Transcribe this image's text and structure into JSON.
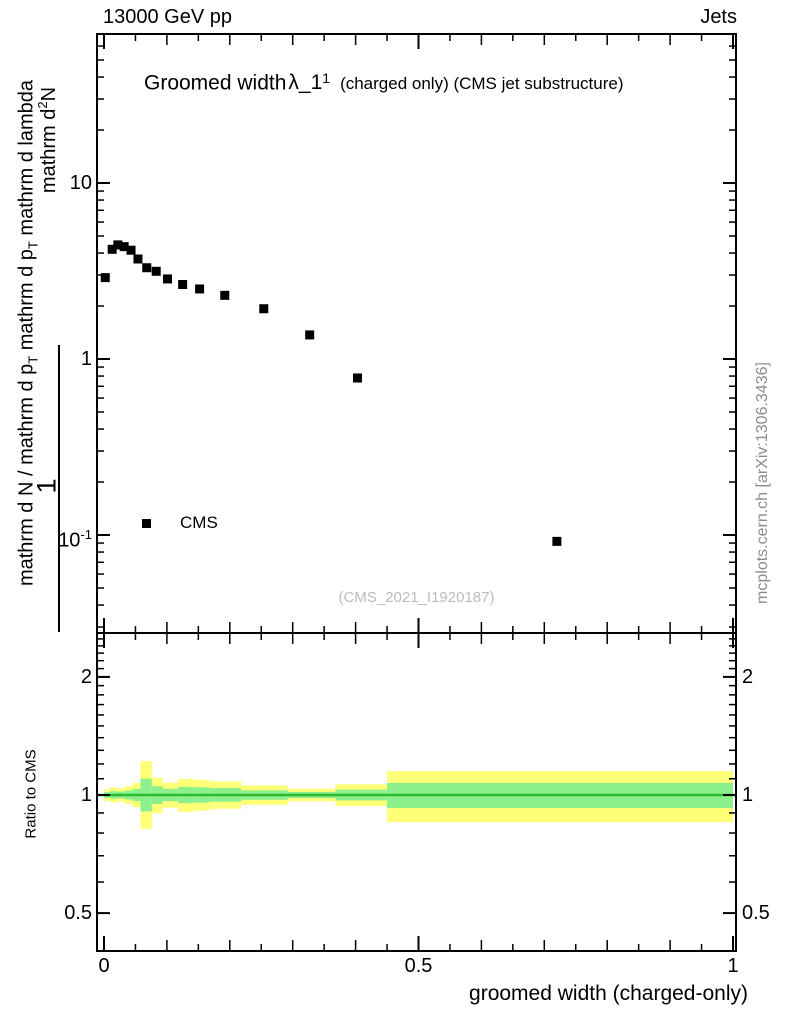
{
  "header": {
    "left": "13000 GeV pp",
    "right": "Jets"
  },
  "title": {
    "part1": "Groomed width",
    "lambda": "λ_1",
    "sup": "1",
    "part3": "(charged only) (CMS jet substructure)"
  },
  "legend": {
    "label": "CMS"
  },
  "watermark": "(CMS_2021_I1920187)",
  "side_text": "mcplots.cern.ch [arXiv:1306.3436]",
  "ylabel": {
    "num1": "mathrm d",
    "numSup": "2",
    "num2": "N",
    "one": "1",
    "den1": "mathrm d N / mathrm d p",
    "denSub1": "T",
    "den2": " mathrm d p",
    "denSub2": "T",
    "den3": " mathrm d lambda"
  },
  "chart_data": {
    "type": "scatter",
    "title": "Groomed width λ_1^1 (charged only) (CMS jet substructure)",
    "x_axis": {
      "title": "groomed width (charged-only)",
      "range": [
        0,
        1
      ],
      "ticks": [
        {
          "v": 0,
          "label": "0"
        },
        {
          "v": 0.5,
          "label": "0.5"
        },
        {
          "v": 1,
          "label": "1"
        }
      ],
      "minor_step": 0.05,
      "mid_step": 0.1
    },
    "top_panel": {
      "y_scale": "log",
      "y_range": [
        0.028,
        70
      ],
      "y_ticks": [
        {
          "v": 10,
          "label": "10"
        },
        {
          "v": 1,
          "label": "1"
        },
        {
          "v": 0.1,
          "label": "10",
          "sup": "-1"
        }
      ],
      "series": [
        {
          "name": "CMS",
          "marker": "filled-square",
          "color": "#000000",
          "points": [
            [
              0.002,
              2.9
            ],
            [
              0.013,
              4.2
            ],
            [
              0.022,
              4.45
            ],
            [
              0.032,
              4.35
            ],
            [
              0.043,
              4.15
            ],
            [
              0.054,
              3.7
            ],
            [
              0.068,
              3.3
            ],
            [
              0.083,
              3.15
            ],
            [
              0.101,
              2.85
            ],
            [
              0.125,
              2.65
            ],
            [
              0.152,
              2.5
            ],
            [
              0.192,
              2.3
            ],
            [
              0.254,
              1.93
            ],
            [
              0.327,
              1.37
            ],
            [
              0.403,
              0.78
            ],
            [
              0.72,
              0.092
            ]
          ]
        }
      ]
    },
    "ratio_panel": {
      "ylabel": "Ratio to CMS",
      "y_scale": "log",
      "y_range": [
        0.4,
        2.58
      ],
      "y_ticks": [
        {
          "v": 2,
          "label": "2"
        },
        {
          "v": 1,
          "label": "1"
        },
        {
          "v": 0.5,
          "label": "0.5"
        }
      ],
      "center_line": {
        "y": 1,
        "color": "#2db92d"
      },
      "band_colors": {
        "outer": "#ffff78",
        "inner": "#8cf08c"
      },
      "bins": [
        {
          "x0": 0.0,
          "x1": 0.01,
          "outer": [
            0.966,
            1.034
          ],
          "inner": [
            0.983,
            1.017
          ]
        },
        {
          "x0": 0.01,
          "x1": 0.021,
          "outer": [
            0.956,
            1.046
          ],
          "inner": [
            0.978,
            1.023
          ]
        },
        {
          "x0": 0.021,
          "x1": 0.033,
          "outer": [
            0.962,
            1.04
          ],
          "inner": [
            0.981,
            1.02
          ]
        },
        {
          "x0": 0.033,
          "x1": 0.046,
          "outer": [
            0.948,
            1.054
          ],
          "inner": [
            0.974,
            1.027
          ]
        },
        {
          "x0": 0.046,
          "x1": 0.058,
          "outer": [
            0.93,
            1.073
          ],
          "inner": [
            0.965,
            1.036
          ]
        },
        {
          "x0": 0.058,
          "x1": 0.076,
          "outer": [
            0.82,
            1.22
          ],
          "inner": [
            0.908,
            1.1
          ]
        },
        {
          "x0": 0.076,
          "x1": 0.093,
          "outer": [
            0.898,
            1.106
          ],
          "inner": [
            0.949,
            1.053
          ]
        },
        {
          "x0": 0.093,
          "x1": 0.118,
          "outer": [
            0.928,
            1.075
          ],
          "inner": [
            0.964,
            1.037
          ]
        },
        {
          "x0": 0.118,
          "x1": 0.143,
          "outer": [
            0.906,
            1.099
          ],
          "inner": [
            0.953,
            1.049
          ]
        },
        {
          "x0": 0.143,
          "x1": 0.168,
          "outer": [
            0.912,
            1.093
          ],
          "inner": [
            0.956,
            1.046
          ]
        },
        {
          "x0": 0.168,
          "x1": 0.218,
          "outer": [
            0.922,
            1.083
          ],
          "inner": [
            0.961,
            1.041
          ]
        },
        {
          "x0": 0.218,
          "x1": 0.292,
          "outer": [
            0.944,
            1.058
          ],
          "inner": [
            0.972,
            1.028
          ]
        },
        {
          "x0": 0.292,
          "x1": 0.368,
          "outer": [
            0.964,
            1.037
          ],
          "inner": [
            0.982,
            1.018
          ]
        },
        {
          "x0": 0.368,
          "x1": 0.45,
          "outer": [
            0.938,
            1.065
          ],
          "inner": [
            0.969,
            1.032
          ]
        },
        {
          "x0": 0.45,
          "x1": 1.0,
          "outer": [
            0.853,
            1.151
          ],
          "inner": [
            0.926,
            1.073
          ]
        }
      ]
    }
  }
}
